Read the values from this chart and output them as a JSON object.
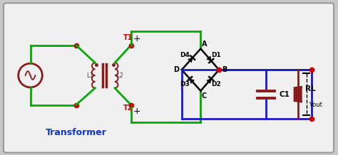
{
  "bg_outer": "#c8c8c8",
  "bg_inner": "#f0f0f0",
  "green": "#00aa00",
  "blue": "#1a1acc",
  "dark_red": "#8b1a1a",
  "red_dot": "#cc0000",
  "black": "#000000",
  "label_red": "#cc2200",
  "figsize": [
    4.74,
    2.18
  ],
  "dpi": 100,
  "xlim": [
    0,
    474
  ],
  "ylim": [
    0,
    218
  ],
  "lw_main": 2.0,
  "lw_coil": 1.4,
  "dot_size": 4.5,
  "transformer_label": "Transformer",
  "T1_label": "T1",
  "T2_label": "T2",
  "L1_label": "L1",
  "L2_label": "L2",
  "C1_label": "C1",
  "RL_label": "RL",
  "Vout_label": "Vout",
  "A_label": "A",
  "B_label": "B",
  "C_label": "C",
  "D_label": "D",
  "D1_label": "D1",
  "D2_label": "D2",
  "D3_label": "D3",
  "D4_label": "D4"
}
